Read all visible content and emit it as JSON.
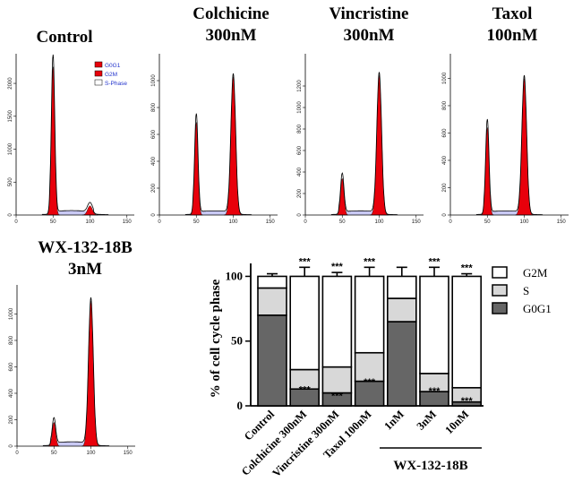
{
  "titles": {
    "control": [
      "Control"
    ],
    "colchicine": [
      "Colchicine",
      "300nM"
    ],
    "vincristine": [
      "Vincristine",
      "300nM"
    ],
    "taxol": [
      "Taxol",
      "100nM"
    ],
    "wx": [
      "WX-132-18B",
      "3nM"
    ]
  },
  "legend_small": [
    "G0G1",
    "G2M",
    "S-Phase"
  ],
  "colors": {
    "g0g1": "#666666",
    "s": "#d8d8d8",
    "g2m": "#ffffff",
    "hist_fill": "#e8000b",
    "s_fill": "#c9c9f4"
  },
  "chart_data": [
    {
      "type": "area",
      "title": "Control",
      "xticks": [
        "0",
        "50",
        "100",
        "150"
      ],
      "yticks": [
        "0",
        "500",
        "1000",
        "1500",
        "2000"
      ],
      "xlim": [
        0,
        160
      ],
      "ylim": [
        0,
        2450
      ],
      "peaks": {
        "g1_pos": 50,
        "g1_height": 2250,
        "g2_pos": 100,
        "g2_height": 140
      }
    },
    {
      "type": "area",
      "title": "Colchicine 300nM",
      "xticks": [
        "0",
        "50",
        "100",
        "150"
      ],
      "yticks": [
        "0",
        "200",
        "400",
        "600",
        "800",
        "1000"
      ],
      "xlim": [
        0,
        160
      ],
      "ylim": [
        0,
        1200
      ],
      "peaks": {
        "g1_pos": 50,
        "g1_height": 690,
        "g2_pos": 100,
        "g2_height": 1030
      }
    },
    {
      "type": "area",
      "title": "Vincristine 300nM",
      "xticks": [
        "0",
        "50",
        "100",
        "150"
      ],
      "yticks": [
        "0",
        "200",
        "400",
        "600",
        "800",
        "1000",
        "1200"
      ],
      "xlim": [
        0,
        160
      ],
      "ylim": [
        0,
        1500
      ],
      "peaks": {
        "g1_pos": 50,
        "g1_height": 340,
        "g2_pos": 100,
        "g2_height": 1300
      }
    },
    {
      "type": "area",
      "title": "Taxol 100nM",
      "xticks": [
        "0",
        "50",
        "100",
        "150"
      ],
      "yticks": [
        "0",
        "200",
        "400",
        "600",
        "800",
        "1000"
      ],
      "xlim": [
        0,
        160
      ],
      "ylim": [
        0,
        1180
      ],
      "peaks": {
        "g1_pos": 50,
        "g1_height": 640,
        "g2_pos": 100,
        "g2_height": 1000
      }
    },
    {
      "type": "area",
      "title": "WX-132-18B 3nM",
      "xticks": [
        "0",
        "50",
        "100",
        "150"
      ],
      "yticks": [
        "0",
        "200",
        "400",
        "600",
        "800",
        "1000"
      ],
      "xlim": [
        0,
        160
      ],
      "ylim": [
        0,
        1220
      ],
      "peaks": {
        "g1_pos": 50,
        "g1_height": 180,
        "g2_pos": 100,
        "g2_height": 1100
      }
    },
    {
      "type": "bar",
      "stacked": true,
      "ylabel": "% of cell cycle phase",
      "ylim": [
        0,
        110
      ],
      "yticks": [
        "0",
        "50",
        "100"
      ],
      "categories": [
        "Control",
        "Colchicine 300nM",
        "Vincristine 300nM",
        "Taxol 100nM",
        "1nM",
        "3nM",
        "10nM"
      ],
      "group_label": "WX-132-18B",
      "series": [
        {
          "name": "G0G1",
          "values": [
            70,
            13,
            10,
            19,
            65,
            11,
            3
          ],
          "errors": [
            2,
            4,
            2,
            4,
            8,
            5,
            1
          ]
        },
        {
          "name": "S",
          "values": [
            21,
            15,
            20,
            22,
            18,
            14,
            11
          ],
          "errors": [
            2,
            3,
            4,
            3,
            5,
            2,
            1
          ]
        },
        {
          "name": "G2M",
          "values": [
            9,
            72,
            70,
            59,
            17,
            75,
            86
          ],
          "errors": [
            2,
            7,
            3,
            7,
            7,
            7,
            2
          ]
        }
      ],
      "significance_top": [
        "",
        "***",
        "***",
        "***",
        "",
        "***",
        "***"
      ],
      "significance_g0g1": [
        "",
        "***",
        "***",
        "***",
        "",
        "***",
        "***"
      ],
      "legend": [
        "G2M",
        "S",
        "G0G1"
      ]
    }
  ]
}
